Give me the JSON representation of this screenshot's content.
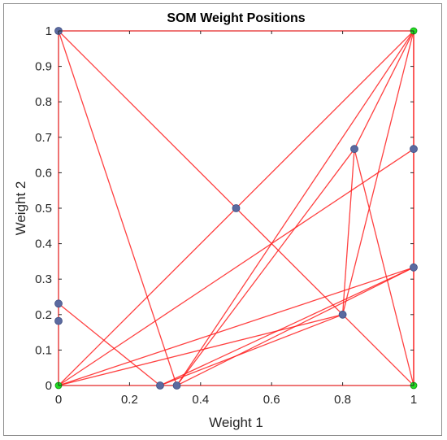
{
  "chart_data": {
    "type": "scatter",
    "title": "SOM Weight Positions",
    "xlabel": "Weight 1",
    "ylabel": "Weight 2",
    "xlim": [
      0,
      1
    ],
    "ylim": [
      0,
      1
    ],
    "grid": false,
    "xticks": [
      "0",
      "0.2",
      "0.4",
      "0.6",
      "0.8",
      "1"
    ],
    "yticks": [
      "0",
      "0.1",
      "0.2",
      "0.3",
      "0.4",
      "0.5",
      "0.6",
      "0.7",
      "0.8",
      "0.9",
      "1"
    ],
    "xtick_values": [
      0,
      0.2,
      0.4,
      0.6,
      0.8,
      1
    ],
    "ytick_values": [
      0,
      0.1,
      0.2,
      0.3,
      0.4,
      0.5,
      0.6,
      0.7,
      0.8,
      0.9,
      1
    ],
    "weights": [
      {
        "x": 0,
        "y": 1
      },
      {
        "x": 0,
        "y": 0.231
      },
      {
        "x": 0,
        "y": 0.182
      },
      {
        "x": 0.5,
        "y": 0.5
      },
      {
        "x": 0.286,
        "y": 0
      },
      {
        "x": 0.333,
        "y": 0
      },
      {
        "x": 0.8,
        "y": 0.2
      },
      {
        "x": 0.833,
        "y": 0.667
      },
      {
        "x": 1,
        "y": 0.667
      },
      {
        "x": 1,
        "y": 0.333
      }
    ],
    "corner_points": [
      {
        "x": 0,
        "y": 0
      },
      {
        "x": 1,
        "y": 1
      },
      {
        "x": 1,
        "y": 0
      }
    ],
    "connections": [
      [
        [
          0,
          1
        ],
        [
          0.5,
          0.5
        ]
      ],
      [
        [
          0.5,
          0.5
        ],
        [
          1,
          0
        ]
      ],
      [
        [
          0,
          0
        ],
        [
          0.5,
          0.5
        ]
      ],
      [
        [
          0.5,
          0.5
        ],
        [
          1,
          1
        ]
      ],
      [
        [
          0,
          1
        ],
        [
          0.333,
          0
        ]
      ],
      [
        [
          0,
          0.231
        ],
        [
          0.286,
          0
        ]
      ],
      [
        [
          0.333,
          0
        ],
        [
          1,
          1
        ]
      ],
      [
        [
          0.333,
          0
        ],
        [
          0.833,
          0.667
        ]
      ],
      [
        [
          0.333,
          0
        ],
        [
          1,
          0.333
        ]
      ],
      [
        [
          0,
          0
        ],
        [
          0.8,
          0.2
        ]
      ],
      [
        [
          0,
          0
        ],
        [
          1,
          0.333
        ]
      ],
      [
        [
          0,
          0
        ],
        [
          1,
          0.667
        ]
      ],
      [
        [
          0.8,
          0.2
        ],
        [
          1,
          1
        ]
      ],
      [
        [
          0.8,
          0.2
        ],
        [
          0.833,
          0.667
        ]
      ],
      [
        [
          0.8,
          0.2
        ],
        [
          0.286,
          0
        ]
      ],
      [
        [
          0.833,
          0.667
        ],
        [
          1,
          1
        ]
      ],
      [
        [
          0.833,
          0.667
        ],
        [
          1,
          0
        ]
      ],
      [
        [
          1,
          0.333
        ],
        [
          1,
          1
        ]
      ],
      [
        [
          1,
          0.333
        ],
        [
          1,
          0
        ]
      ],
      [
        [
          1,
          0
        ],
        [
          1,
          1
        ]
      ],
      [
        [
          0,
          1
        ],
        [
          1,
          1
        ]
      ],
      [
        [
          0,
          0
        ],
        [
          1,
          0
        ]
      ],
      [
        [
          0,
          0
        ],
        [
          0,
          1
        ]
      ],
      [
        [
          0.286,
          0
        ],
        [
          1,
          0.333
        ]
      ]
    ],
    "colors": {
      "line": "#ff2020",
      "weight_marker": "#5b6aa0",
      "corner_marker": "#22dd22",
      "text": "#262626"
    }
  }
}
